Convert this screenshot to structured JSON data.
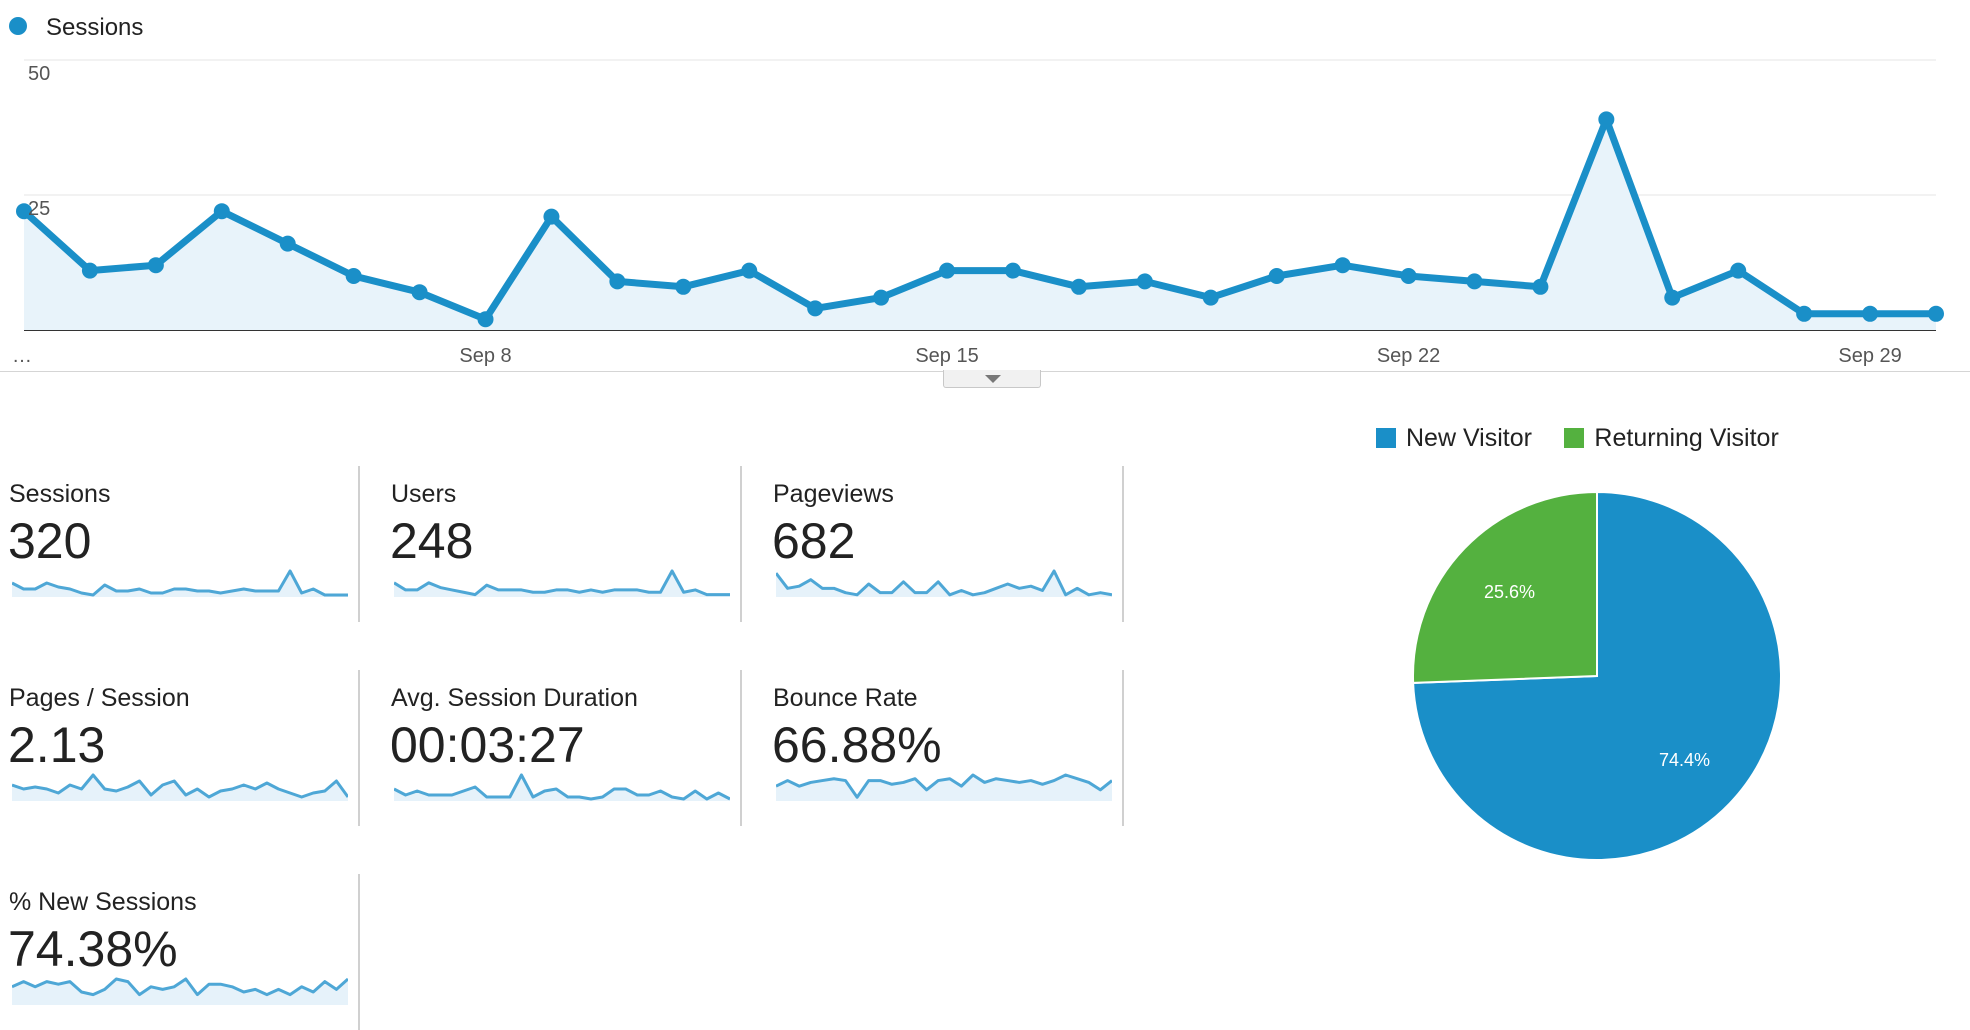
{
  "colors": {
    "primary": "#1a8fc8",
    "area_fill": "#e8f3fa",
    "spark_line": "#4ea7d6",
    "spark_fill": "#e6f2fa",
    "new_visitor": "#1a8fc8",
    "returning_visitor": "#54b13f"
  },
  "chart_data": [
    {
      "type": "area",
      "legend": [
        "Sessions"
      ],
      "x_start": "…",
      "x_ticks": [
        "Sep 8",
        "Sep 15",
        "Sep 22",
        "Sep 29"
      ],
      "y_ticks": [
        25,
        50
      ],
      "ylim": [
        0,
        50
      ],
      "grid": true,
      "legend_position": "top-left",
      "series": [
        {
          "name": "Sessions",
          "values": [
            22,
            11,
            12,
            22,
            16,
            10,
            7,
            2,
            21,
            9,
            8,
            11,
            4,
            6,
            11,
            11,
            8,
            9,
            6,
            10,
            12,
            10,
            9,
            8,
            39,
            6,
            11,
            3,
            3,
            3
          ]
        }
      ]
    },
    {
      "type": "pie",
      "legend": [
        "New Visitor",
        "Returning Visitor"
      ],
      "legend_position": "top",
      "slices": [
        {
          "name": "New Visitor",
          "value": 74.4,
          "label": "74.4%"
        },
        {
          "name": "Returning Visitor",
          "value": 25.6,
          "label": "25.6%"
        }
      ]
    }
  ],
  "metrics": [
    {
      "label": "Sessions",
      "value": "320",
      "spark": [
        7,
        4,
        4,
        7,
        5,
        4,
        2,
        1,
        6,
        3,
        3,
        4,
        2,
        2,
        4,
        4,
        3,
        3,
        2,
        3,
        4,
        3,
        3,
        3,
        13,
        2,
        4,
        1,
        1,
        1
      ]
    },
    {
      "label": "Users",
      "value": "248",
      "spark": [
        6,
        3,
        3,
        6,
        4,
        3,
        2,
        1,
        5,
        3,
        3,
        3,
        2,
        2,
        3,
        3,
        2,
        3,
        2,
        3,
        3,
        3,
        2,
        2,
        11,
        2,
        3,
        1,
        1,
        1
      ]
    },
    {
      "label": "Pageviews",
      "value": "682",
      "spark": [
        11,
        4,
        5,
        8,
        4,
        4,
        2,
        1,
        6,
        2,
        2,
        7,
        2,
        2,
        7,
        1,
        3,
        1,
        2,
        4,
        6,
        4,
        5,
        3,
        12,
        1,
        4,
        1,
        2,
        1
      ]
    },
    {
      "label": "Pages / Session",
      "value": "2.13",
      "spark": [
        8,
        6,
        7,
        6,
        4,
        8,
        6,
        13,
        6,
        5,
        7,
        10,
        3,
        8,
        10,
        3,
        6,
        2,
        5,
        6,
        8,
        6,
        9,
        6,
        4,
        2,
        4,
        5,
        10,
        2
      ]
    },
    {
      "label": "Avg. Session Duration",
      "value": "00:03:27",
      "spark": [
        6,
        3,
        5,
        3,
        3,
        3,
        5,
        7,
        2,
        2,
        2,
        13,
        2,
        5,
        6,
        2,
        2,
        1,
        2,
        6,
        6,
        3,
        3,
        5,
        2,
        1,
        5,
        1,
        4,
        1
      ]
    },
    {
      "label": "Bounce Rate",
      "value": "66.88%",
      "spark": [
        8,
        11,
        8,
        10,
        11,
        12,
        11,
        2,
        11,
        11,
        9,
        10,
        12,
        6,
        11,
        12,
        8,
        14,
        10,
        12,
        11,
        10,
        11,
        9,
        11,
        14,
        12,
        10,
        6,
        11
      ]
    },
    {
      "label": "% New Sessions",
      "value": "74.38%",
      "spark": [
        7,
        9,
        7,
        9,
        8,
        9,
        5,
        4,
        6,
        10,
        9,
        4,
        7,
        6,
        7,
        10,
        4,
        8,
        8,
        7,
        5,
        6,
        4,
        6,
        4,
        7,
        5,
        9,
        6,
        10
      ]
    }
  ]
}
